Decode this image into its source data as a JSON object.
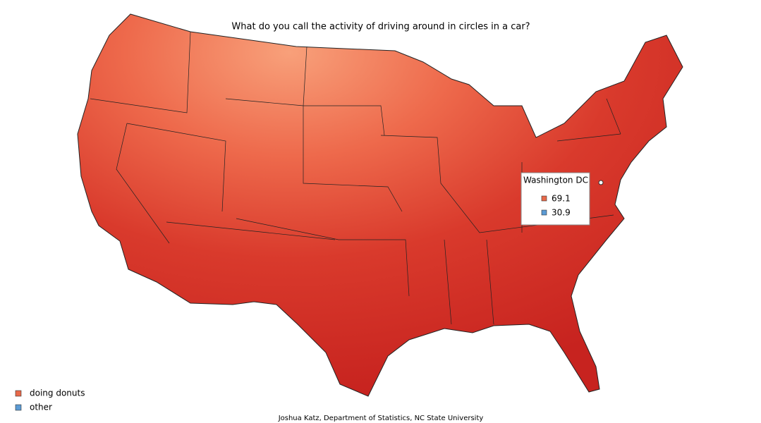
{
  "title": "What do you call the activity of driving around in circles in a car?",
  "tooltip": {
    "location": "Washington DC",
    "values": [
      69.1,
      30.9
    ]
  },
  "legend": {
    "items": [
      {
        "label": "doing donuts",
        "color": "#e8694a"
      },
      {
        "label": "other",
        "color": "#5b9bd5"
      }
    ]
  },
  "credit": "Joshua Katz, Department of Statistics, NC State University"
}
